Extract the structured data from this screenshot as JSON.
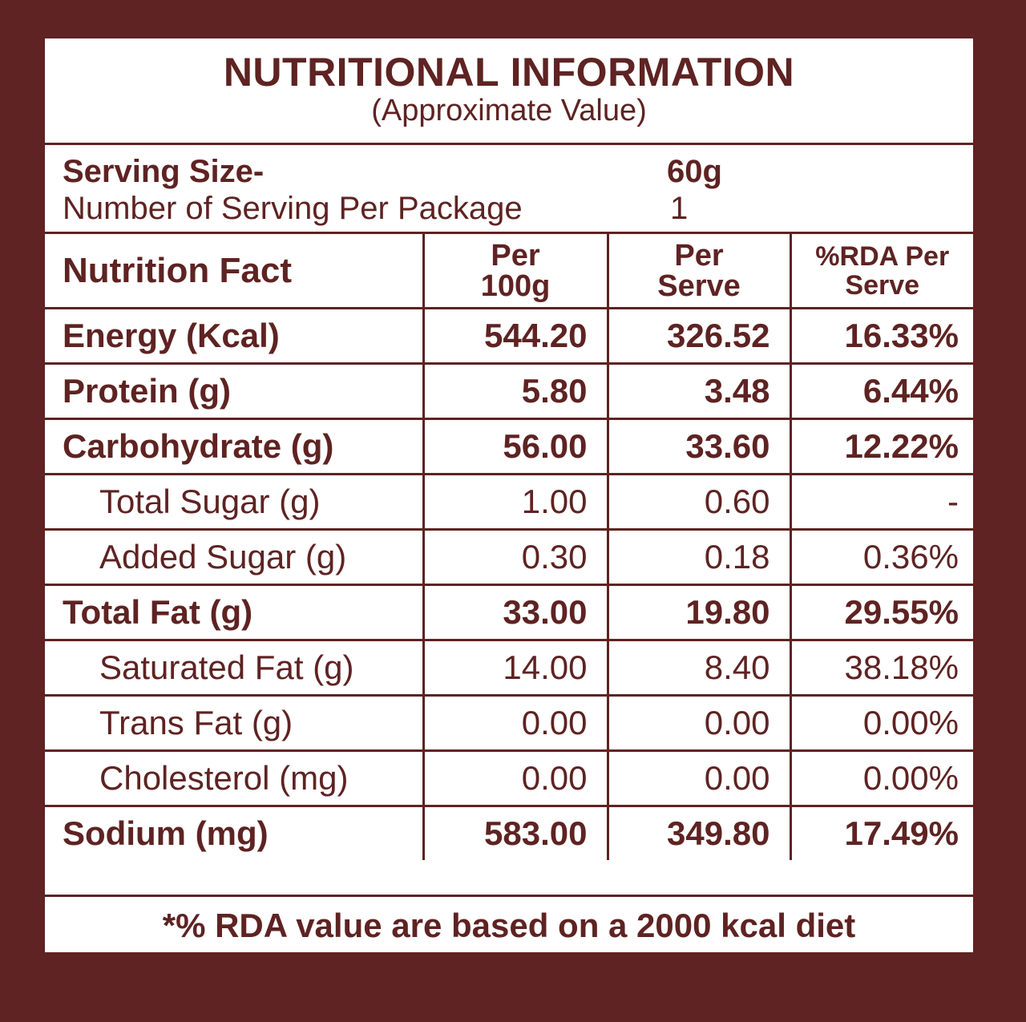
{
  "header": {
    "title": "NUTRITIONAL INFORMATION",
    "subtitle": "(Approximate Value)"
  },
  "serving": {
    "size_label": "Serving Size-",
    "size_value": "60g",
    "count_label": "Number of Serving Per Package",
    "count_value": "1"
  },
  "table": {
    "columns": {
      "fact": "Nutrition Fact",
      "per100_line1": "Per",
      "per100_line2": "100g",
      "perserve_line1": "Per",
      "perserve_line2": "Serve",
      "rda_line1": "%RDA Per",
      "rda_line2": "Serve"
    },
    "rows": [
      {
        "name": "Energy (Kcal)",
        "per100": "544.20",
        "perserve": "326.52",
        "rda": "16.33%",
        "sub": false
      },
      {
        "name": "Protein (g)",
        "per100": "5.80",
        "perserve": "3.48",
        "rda": "6.44%",
        "sub": false
      },
      {
        "name": "Carbohydrate (g)",
        "per100": "56.00",
        "perserve": "33.60",
        "rda": "12.22%",
        "sub": false
      },
      {
        "name": "Total Sugar (g)",
        "per100": "1.00",
        "perserve": "0.60",
        "rda": "-",
        "sub": true
      },
      {
        "name": "Added Sugar (g)",
        "per100": "0.30",
        "perserve": "0.18",
        "rda": "0.36%",
        "sub": true
      },
      {
        "name": "Total Fat (g)",
        "per100": "33.00",
        "perserve": "19.80",
        "rda": "29.55%",
        "sub": false
      },
      {
        "name": "Saturated Fat (g)",
        "per100": "14.00",
        "perserve": "8.40",
        "rda": "38.18%",
        "sub": true
      },
      {
        "name": "Trans Fat (g)",
        "per100": "0.00",
        "perserve": "0.00",
        "rda": "0.00%",
        "sub": true
      },
      {
        "name": "Cholesterol (mg)",
        "per100": "0.00",
        "perserve": "0.00",
        "rda": "0.00%",
        "sub": true
      },
      {
        "name": "Sodium (mg)",
        "per100": "583.00",
        "perserve": "349.80",
        "rda": "17.49%",
        "sub": false
      }
    ]
  },
  "footer": {
    "note": "*% RDA value are based on a 2000 kcal diet"
  },
  "colors": {
    "brand": "#5e2322",
    "panel": "#ffffff"
  }
}
